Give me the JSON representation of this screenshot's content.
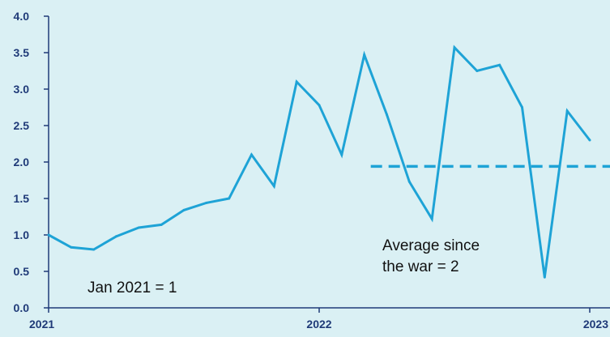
{
  "chart_data": {
    "type": "line",
    "title": "",
    "xlabel": "",
    "ylabel": "",
    "ylim": [
      0,
      4
    ],
    "yticks": [
      "0.0",
      "0.5",
      "1.0",
      "1.5",
      "2.0",
      "2.5",
      "3.0",
      "3.5",
      "4.0"
    ],
    "xticks": [
      "2021",
      "2022",
      "2023"
    ],
    "grid": false,
    "colors": {
      "background": "#daf0f4",
      "line": "#1ea3d6",
      "axis": "#1f3a78"
    },
    "series": [
      {
        "x": [
          "2021-01",
          "2021-02",
          "2021-03",
          "2021-04",
          "2021-05",
          "2021-06",
          "2021-07",
          "2021-08",
          "2021-09",
          "2021-10",
          "2021-11",
          "2021-12",
          "2022-01",
          "2022-02",
          "2022-03",
          "2022-04",
          "2022-05",
          "2022-06",
          "2022-07",
          "2022-08",
          "2022-09",
          "2022-10",
          "2022-11",
          "2022-12",
          "2023-01"
        ],
        "values": [
          1.0,
          0.83,
          0.8,
          0.98,
          1.1,
          1.14,
          1.34,
          1.44,
          1.5,
          2.1,
          1.67,
          3.1,
          2.78,
          2.1,
          3.47,
          2.65,
          1.73,
          1.22,
          3.57,
          3.25,
          3.33,
          2.75,
          0.42,
          2.7,
          2.3
        ]
      }
    ],
    "reference_line": {
      "value": 1.94,
      "x_start": "2022-03",
      "x_end": "2023-01",
      "style": "dashed"
    },
    "annotations": [
      {
        "text": "Jan 2021 = 1"
      },
      {
        "text": "Average since"
      },
      {
        "text": "the war = 2"
      }
    ]
  }
}
